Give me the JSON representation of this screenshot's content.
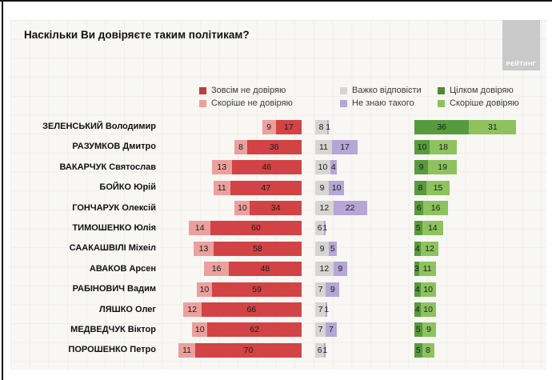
{
  "title": "Наскільки Ви довіряєте таким політикам?",
  "logo": "РЕЙТИНГ",
  "legend": [
    {
      "label": "Зовсім не довіряю",
      "color": "#c43b3c"
    },
    {
      "label": "Скоріше не довіряю",
      "color": "#eba09d"
    },
    {
      "label": "Важко відповісти",
      "color": "#d6d5d2"
    },
    {
      "label": "Не знаю такого",
      "color": "#b5a6d6"
    },
    {
      "label": "Цілком довіряю",
      "color": "#4e8a33"
    },
    {
      "label": "Скоріше довіряю",
      "color": "#8dc25f"
    }
  ],
  "chart_data": {
    "type": "bar",
    "orientation": "horizontal-diverging",
    "title": "Наскільки Ви довіряєте таким політикам?",
    "unit": "percent",
    "legend_position": "top",
    "grid": true,
    "categories": [
      "ЗЕЛЕНСЬКИЙ Володимир",
      "РАЗУМКОВ Дмитро",
      "ВАКАРЧУК Святослав",
      "БОЙКО Юрій",
      "ГОНЧАРУК Олексій",
      "ТИМОШЕНКО Юлія",
      "СААКАШВІЛІ Міхеіл",
      "АВАКОВ Арсен",
      "РАБІНОВИЧ Вадим",
      "ЛЯШКО Олег",
      "МЕДВЕДЧУК Віктор",
      "ПОРОШЕНКО Петро"
    ],
    "series": [
      {
        "name": "Скоріше не довіряю",
        "key": "rather-distrust",
        "color": "#eba09d",
        "values": [
          9,
          8,
          13,
          11,
          10,
          14,
          13,
          16,
          10,
          12,
          10,
          11
        ]
      },
      {
        "name": "Зовсім не довіряю",
        "key": "completely-distrust",
        "color": "#d24345",
        "values": [
          17,
          36,
          46,
          47,
          34,
          60,
          58,
          48,
          59,
          66,
          62,
          70
        ]
      },
      {
        "name": "Важко відповісти",
        "key": "hard-to-answer",
        "color": "#d6d5d2",
        "values": [
          8,
          11,
          10,
          9,
          12,
          6,
          9,
          12,
          7,
          7,
          7,
          6
        ]
      },
      {
        "name": "Не знаю такого",
        "key": "dont-know",
        "color": "#b5a6d6",
        "values": [
          1,
          17,
          4,
          10,
          22,
          1,
          5,
          9,
          9,
          1,
          7,
          1
        ]
      },
      {
        "name": "Цілком довіряю",
        "key": "completely-trust",
        "color": "#589a3e",
        "values": [
          36,
          10,
          9,
          8,
          6,
          5,
          4,
          3,
          4,
          4,
          5,
          5
        ]
      },
      {
        "name": "Скоріше довіряю",
        "key": "rather-trust",
        "color": "#8dc25f",
        "values": [
          31,
          18,
          19,
          15,
          16,
          14,
          12,
          11,
          10,
          10,
          9,
          8
        ]
      }
    ]
  }
}
